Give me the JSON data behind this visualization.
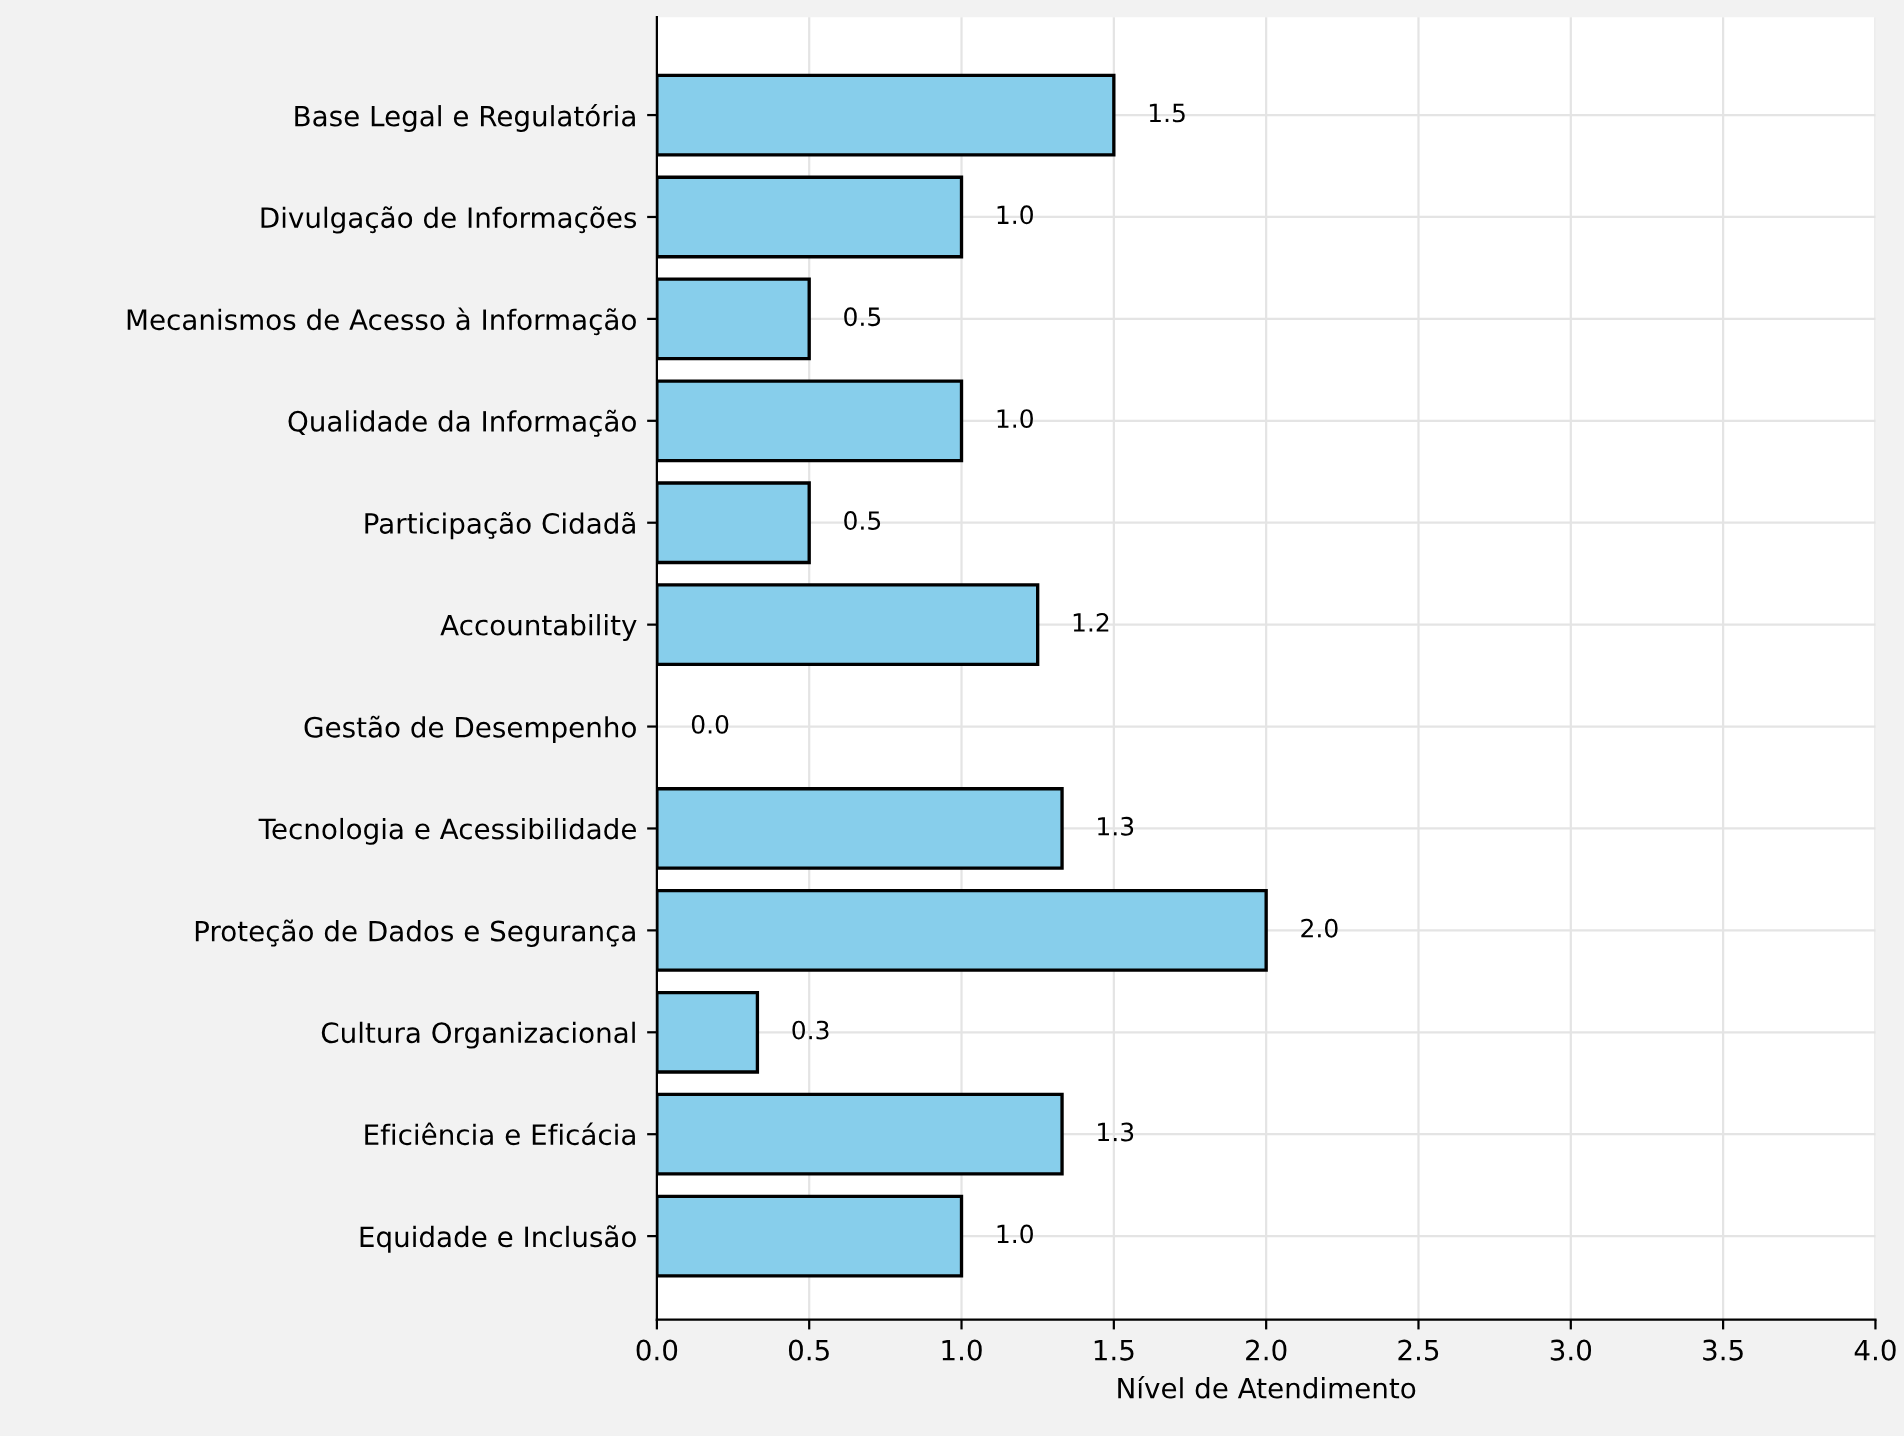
{
  "chart_data": {
    "type": "bar",
    "orientation": "horizontal",
    "xlabel": "Nível de Atendimento",
    "categories": [
      "Base Legal e Regulatória",
      "Divulgação de Informações",
      "Mecanismos de Acesso à Informação",
      "Qualidade da Informação",
      "Participação Cidadã",
      "Accountability",
      "Gestão de Desempenho",
      "Tecnologia e Acessibilidade",
      "Proteção de Dados e Segurança",
      "Cultura Organizacional",
      "Eficiência e Eficácia",
      "Equidade e Inclusão"
    ],
    "values": [
      1.5,
      1.0,
      0.5,
      1.0,
      0.5,
      1.25,
      0.0,
      1.33,
      2.0,
      0.33,
      1.33,
      1.0
    ],
    "value_labels": [
      "1.5",
      "1.0",
      "0.5",
      "1.0",
      "0.5",
      "1.2",
      "0.0",
      "1.3",
      "2.0",
      "0.3",
      "1.3",
      "1.0"
    ],
    "color": "#87ceeb",
    "xlim": [
      0,
      4
    ],
    "xticks": [
      {
        "value": 0,
        "label": "0.0"
      },
      {
        "value": 0.5,
        "label": "0.5"
      },
      {
        "value": 1,
        "label": "1.0"
      },
      {
        "value": 1.5,
        "label": "1.5"
      },
      {
        "value": 2,
        "label": "2.0"
      },
      {
        "value": 2.5,
        "label": "2.5"
      },
      {
        "value": 3,
        "label": "3.0"
      },
      {
        "value": 3.5,
        "label": "3.5"
      },
      {
        "value": 4,
        "label": "4.0"
      }
    ],
    "grid": true
  }
}
